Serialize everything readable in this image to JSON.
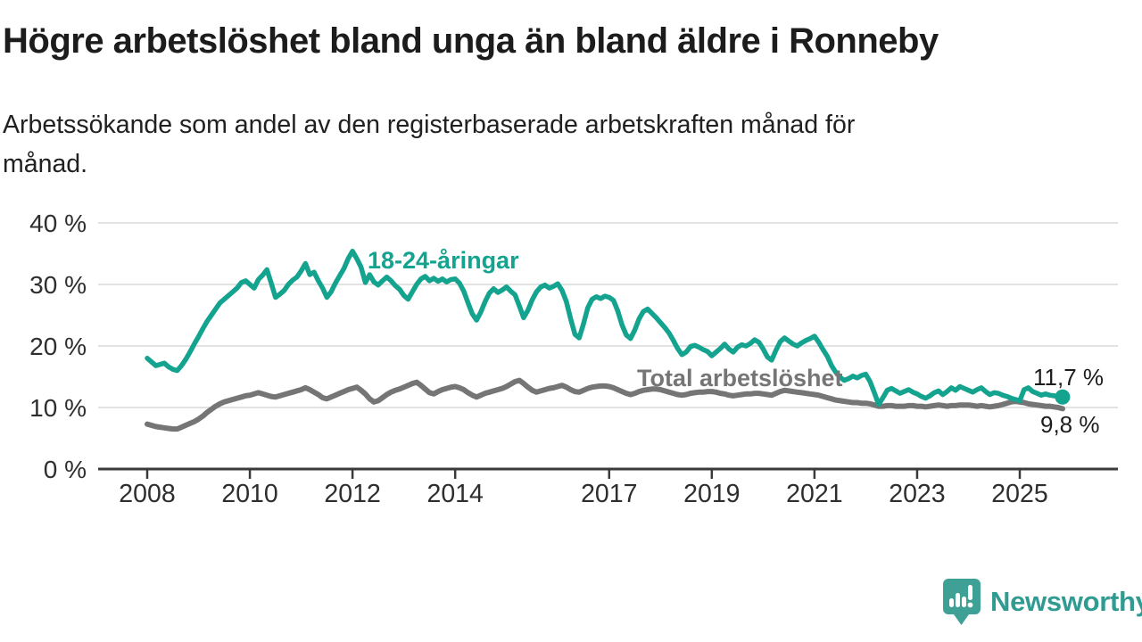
{
  "header": {
    "title": "Högre arbetslöshet bland unga än bland äldre i Ronneby",
    "subtitle": "Arbetssökande som andel av den registerbaserade arbetskraften månad för månad."
  },
  "chart_data": {
    "type": "line",
    "x_unit": "month",
    "x_start": "2008-01",
    "x_end": "2025-11",
    "x_tick_years": [
      2008,
      2010,
      2012,
      2014,
      2017,
      2019,
      2021,
      2023,
      2025
    ],
    "x_tick_labels": [
      "2008",
      "2010",
      "2012",
      "2014",
      "2017",
      "2019",
      "2021",
      "2023",
      "2025"
    ],
    "y_ticks": [
      0,
      10,
      20,
      30,
      40
    ],
    "y_tick_labels": [
      "0 %",
      "10 %",
      "20 %",
      "30 %",
      "40 %"
    ],
    "ylim": [
      0,
      40
    ],
    "grid": true,
    "legend_position": "inline-labels",
    "series": [
      {
        "name": "18-24-åringar",
        "color": "#13a38e",
        "end_value_label": "11,7 %",
        "end_value": 11.7,
        "values": [
          18.0,
          17.4,
          16.8,
          17.0,
          17.2,
          16.6,
          16.2,
          16.0,
          16.8,
          17.8,
          19.0,
          20.3,
          21.5,
          22.8,
          24.0,
          25.0,
          26.0,
          27.0,
          27.6,
          28.2,
          28.8,
          29.4,
          30.3,
          30.6,
          30.0,
          29.4,
          30.8,
          31.5,
          32.4,
          30.2,
          27.9,
          28.4,
          29.0,
          30.0,
          30.7,
          31.2,
          32.2,
          33.4,
          31.6,
          32.0,
          30.6,
          29.4,
          27.9,
          28.8,
          30.2,
          31.4,
          32.6,
          34.2,
          35.4,
          34.2,
          32.8,
          30.3,
          31.6,
          30.4,
          29.9,
          30.6,
          31.2,
          30.6,
          29.8,
          29.2,
          28.2,
          27.6,
          28.8,
          30.0,
          30.9,
          31.3,
          30.6,
          31.0,
          30.5,
          30.9,
          30.4,
          30.8,
          30.9,
          30.2,
          28.9,
          27.0,
          25.2,
          24.2,
          25.5,
          27.2,
          28.6,
          29.3,
          28.7,
          29.1,
          29.6,
          28.9,
          28.3,
          26.5,
          24.6,
          25.8,
          27.5,
          28.8,
          29.6,
          29.9,
          29.4,
          29.7,
          30.1,
          29.0,
          27.2,
          24.4,
          21.9,
          21.3,
          23.6,
          26.2,
          27.6,
          28.0,
          27.7,
          28.1,
          27.9,
          27.4,
          25.7,
          23.4,
          21.8,
          21.2,
          22.6,
          24.4,
          25.6,
          26.0,
          25.3,
          24.6,
          23.8,
          23.0,
          22.1,
          20.9,
          19.6,
          18.6,
          19.0,
          19.9,
          20.1,
          19.8,
          19.4,
          19.1,
          18.4,
          19.0,
          19.6,
          20.3,
          19.5,
          19.0,
          19.8,
          20.2,
          20.0,
          20.4,
          21.0,
          20.6,
          19.5,
          18.2,
          17.7,
          19.3,
          20.7,
          21.3,
          20.8,
          20.3,
          20.0,
          20.5,
          20.9,
          21.2,
          21.6,
          20.6,
          19.4,
          18.3,
          16.8,
          15.7,
          14.9,
          14.4,
          14.7,
          15.1,
          14.8,
          15.2,
          15.4,
          14.2,
          12.4,
          10.5,
          11.6,
          12.8,
          13.1,
          12.7,
          12.3,
          12.6,
          12.9,
          12.5,
          12.2,
          11.8,
          11.5,
          11.9,
          12.4,
          12.7,
          12.1,
          12.6,
          13.2,
          12.8,
          13.4,
          13.1,
          12.8,
          12.5,
          12.9,
          13.2,
          12.6,
          12.1,
          12.4,
          12.3,
          12.0,
          11.8,
          11.5,
          11.3,
          11.1,
          12.9,
          13.2,
          12.6,
          12.3,
          12.0,
          12.2,
          12.0,
          11.9,
          11.8,
          11.7
        ]
      },
      {
        "name": "Total arbetslöshet",
        "color": "#757575",
        "end_value_label": "9,8 %",
        "end_value": 9.8,
        "values": [
          7.3,
          7.1,
          6.9,
          6.8,
          6.7,
          6.6,
          6.5,
          6.5,
          6.8,
          7.1,
          7.4,
          7.7,
          8.1,
          8.6,
          9.2,
          9.7,
          10.2,
          10.6,
          10.9,
          11.1,
          11.3,
          11.5,
          11.7,
          11.9,
          12.0,
          12.2,
          12.4,
          12.2,
          12.0,
          11.8,
          11.7,
          11.9,
          12.1,
          12.3,
          12.5,
          12.7,
          12.9,
          13.2,
          12.9,
          12.5,
          12.1,
          11.6,
          11.4,
          11.7,
          12.0,
          12.3,
          12.6,
          12.9,
          13.1,
          13.3,
          12.8,
          12.2,
          11.4,
          10.9,
          11.1,
          11.6,
          12.1,
          12.5,
          12.8,
          13.0,
          13.3,
          13.6,
          13.9,
          14.1,
          13.6,
          13.0,
          12.4,
          12.2,
          12.6,
          12.9,
          13.1,
          13.3,
          13.4,
          13.2,
          12.9,
          12.4,
          12.0,
          11.7,
          12.0,
          12.3,
          12.5,
          12.7,
          12.9,
          13.1,
          13.4,
          13.8,
          14.2,
          14.4,
          13.9,
          13.3,
          12.8,
          12.5,
          12.7,
          12.9,
          13.1,
          13.2,
          13.4,
          13.6,
          13.3,
          12.9,
          12.6,
          12.5,
          12.8,
          13.1,
          13.3,
          13.4,
          13.5,
          13.5,
          13.4,
          13.2,
          12.9,
          12.6,
          12.3,
          12.1,
          12.3,
          12.6,
          12.8,
          12.9,
          13.0,
          13.0,
          12.9,
          12.7,
          12.5,
          12.3,
          12.1,
          12.0,
          12.1,
          12.3,
          12.4,
          12.5,
          12.5,
          12.6,
          12.6,
          12.5,
          12.3,
          12.2,
          12.0,
          11.9,
          12.0,
          12.1,
          12.2,
          12.2,
          12.3,
          12.3,
          12.2,
          12.1,
          12.0,
          12.3,
          12.6,
          12.8,
          12.7,
          12.6,
          12.5,
          12.4,
          12.3,
          12.2,
          12.1,
          12.0,
          11.8,
          11.6,
          11.4,
          11.2,
          11.1,
          11.0,
          10.9,
          10.8,
          10.8,
          10.7,
          10.7,
          10.6,
          10.4,
          10.2,
          10.2,
          10.3,
          10.3,
          10.2,
          10.2,
          10.2,
          10.3,
          10.3,
          10.2,
          10.2,
          10.1,
          10.2,
          10.3,
          10.4,
          10.3,
          10.2,
          10.3,
          10.3,
          10.4,
          10.4,
          10.4,
          10.3,
          10.2,
          10.3,
          10.2,
          10.1,
          10.2,
          10.3,
          10.5,
          10.7,
          10.9,
          11.0,
          10.9,
          10.8,
          10.6,
          10.5,
          10.4,
          10.3,
          10.2,
          10.2,
          10.1,
          10.0,
          9.8
        ]
      }
    ]
  },
  "footer": {
    "brand": "Newsworthy"
  },
  "colors": {
    "accent_teal": "#13a38e",
    "line_gray": "#757575",
    "grid": "#d8d8d8",
    "axis": "#3a3a3a",
    "tick_text": "#2e2e2e",
    "text": "#1c1c1c",
    "brand_teal": "#2f9b91",
    "logo_teal": "#3fa096"
  }
}
